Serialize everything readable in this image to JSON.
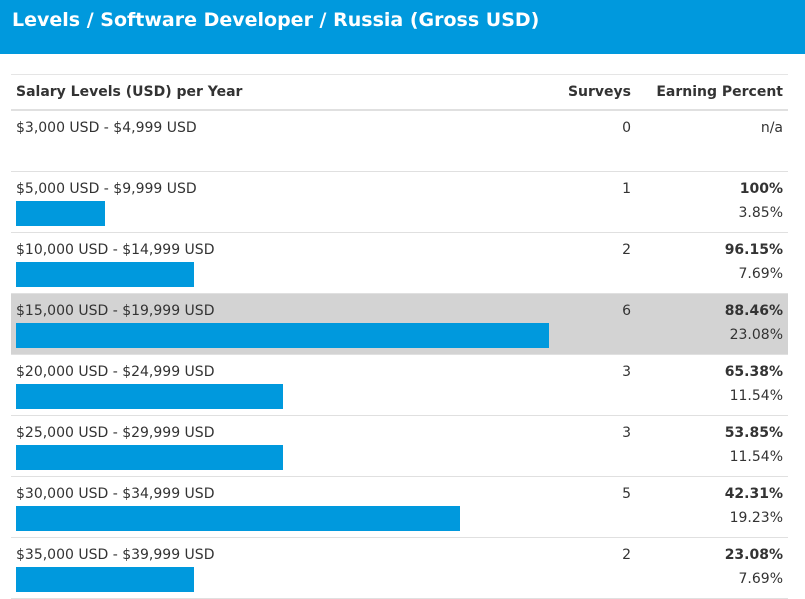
{
  "header": {
    "title": "Levels / Software Developer / Russia (Gross USD)"
  },
  "table": {
    "columns": [
      "Salary Levels (USD) per Year",
      "Surveys",
      "Earning Percent"
    ],
    "rows": [
      {
        "level": "$3,000 USD - $4,999 USD",
        "surveys": 0,
        "earning_percent": "n/a"
      },
      {
        "level": "$5,000 USD - $9,999 USD",
        "surveys": 1,
        "earning_percent": "100%",
        "share": "3.85%"
      },
      {
        "level": "$10,000 USD - $14,999 USD",
        "surveys": 2,
        "earning_percent": "96.15%",
        "share": "7.69%"
      },
      {
        "level": "$15,000 USD - $19,999 USD",
        "surveys": 6,
        "earning_percent": "88.46%",
        "share": "23.08%",
        "highlight": true
      },
      {
        "level": "$20,000 USD - $24,999 USD",
        "surveys": 3,
        "earning_percent": "65.38%",
        "share": "11.54%"
      },
      {
        "level": "$25,000 USD - $29,999 USD",
        "surveys": 3,
        "earning_percent": "53.85%",
        "share": "11.54%"
      },
      {
        "level": "$30,000 USD - $34,999 USD",
        "surveys": 5,
        "earning_percent": "42.31%",
        "share": "19.23%"
      },
      {
        "level": "$35,000 USD - $39,999 USD",
        "surveys": 2,
        "earning_percent": "23.08%",
        "share": "7.69%"
      }
    ]
  }
}
